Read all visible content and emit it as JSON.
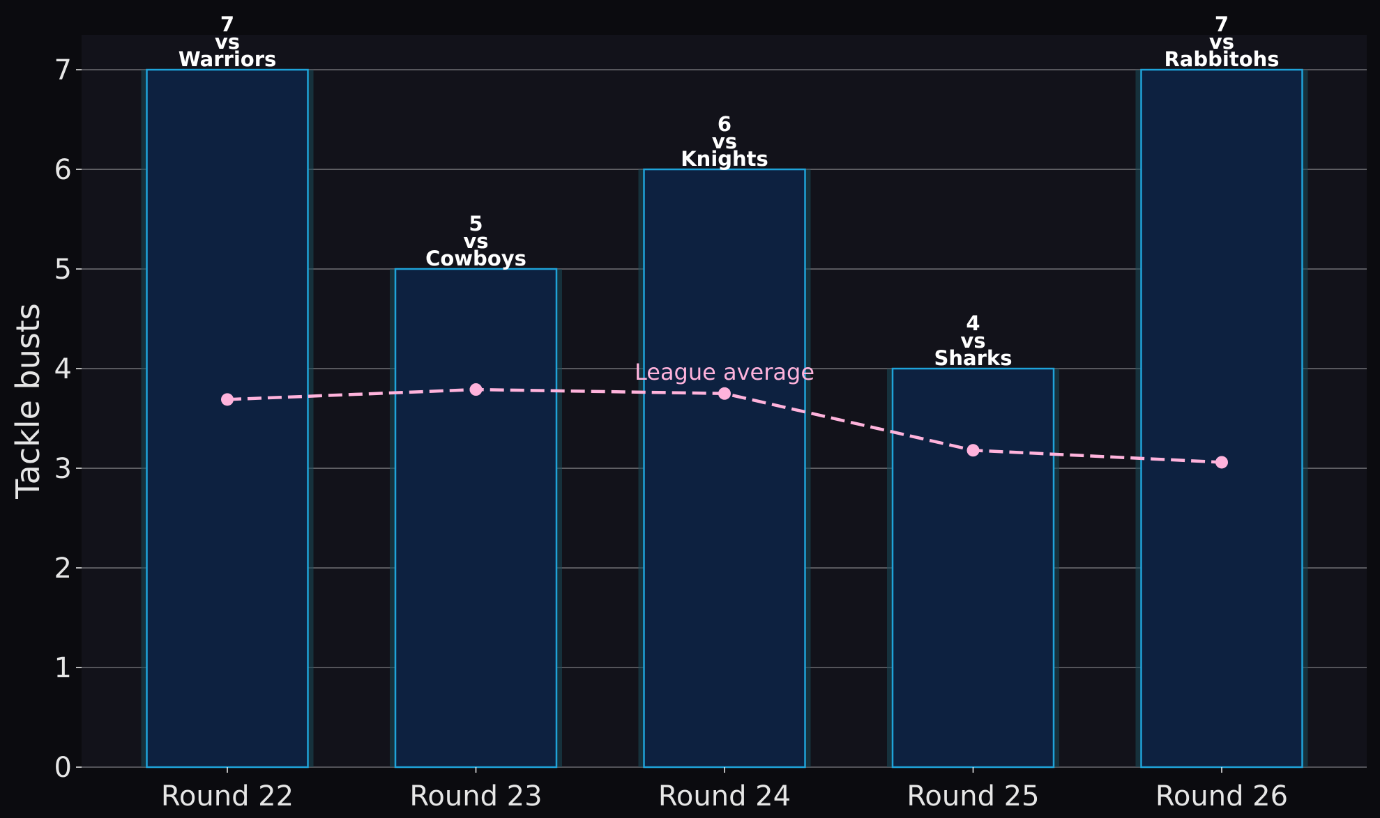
{
  "chart_data": {
    "type": "bar",
    "categories": [
      "Round 22",
      "Round 23",
      "Round 24",
      "Round 25",
      "Round 26"
    ],
    "values": [
      7,
      5,
      6,
      4,
      7
    ],
    "opponents": [
      "Warriors",
      "Cowboys",
      "Knights",
      "Sharks",
      "Rabbitohs"
    ],
    "vs_word": "vs",
    "ylabel": "Tackle busts",
    "ylim": [
      0,
      7.35
    ],
    "yticks": [
      0,
      1,
      2,
      3,
      4,
      5,
      6,
      7
    ],
    "grid": true,
    "average_series": {
      "name": "League average",
      "values": [
        3.69,
        3.79,
        3.75,
        3.18,
        3.06
      ]
    },
    "colors": {
      "figure_bg": "#0b0b0f",
      "plot_bg": "#12121a",
      "bar_fill": "#0d2140",
      "bar_edge": "#1fa3d9",
      "bar_glow": "#1a4a5a",
      "average_line": "#ffb3dc",
      "grid": "#6b6b70",
      "text": "#e6e6e6"
    }
  }
}
